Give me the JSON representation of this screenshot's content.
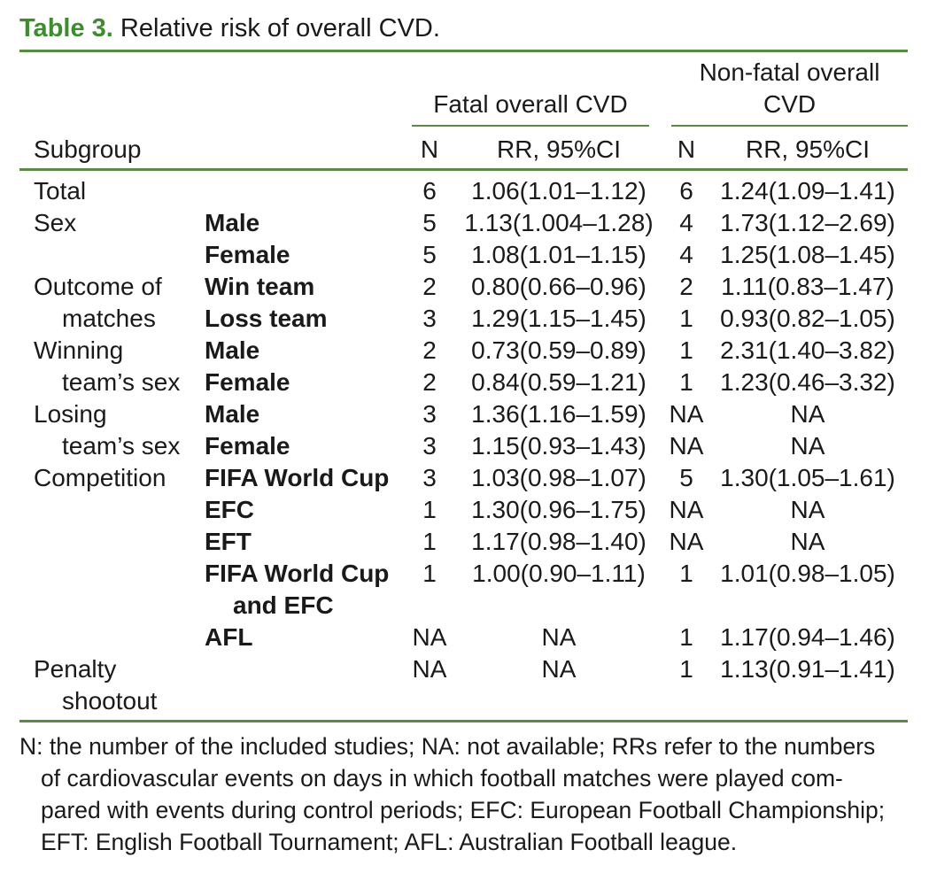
{
  "caption": {
    "label": "Table 3.",
    "text": "Relative risk of overall CVD."
  },
  "headers": {
    "fatal_group": "Fatal overall CVD",
    "nonfatal_group_line1": "Non-fatal overall",
    "nonfatal_group_line2": "CVD",
    "subgroup": "Subgroup",
    "n": "N",
    "rr": "RR, 95%CI"
  },
  "rows": [
    {
      "sub1": "Total",
      "sub2": "",
      "level1": "",
      "level2": "",
      "fatal_n": "6",
      "fatal_rr": "1.06(1.01–1.12)",
      "nonfatal_n": "6",
      "nonfatal_rr": "1.24(1.09–1.41)"
    },
    {
      "sub1": "Sex",
      "sub2": "",
      "level1": "Male",
      "level2": "",
      "fatal_n": "5",
      "fatal_rr": "1.13(1.004–1.28)",
      "nonfatal_n": "4",
      "nonfatal_rr": "1.73(1.12–2.69)"
    },
    {
      "sub1": "",
      "sub2": "",
      "level1": "Female",
      "level2": "",
      "fatal_n": "5",
      "fatal_rr": "1.08(1.01–1.15)",
      "nonfatal_n": "4",
      "nonfatal_rr": "1.25(1.08–1.45)"
    },
    {
      "sub1": "Outcome of",
      "sub2": "",
      "level1": "Win team",
      "level2": "",
      "fatal_n": "2",
      "fatal_rr": "0.80(0.66–0.96)",
      "nonfatal_n": "2",
      "nonfatal_rr": "1.11(0.83–1.47)"
    },
    {
      "sub1": "matches",
      "sub2": "",
      "level1": "Loss team",
      "level2": "",
      "fatal_n": "3",
      "fatal_rr": "1.29(1.15–1.45)",
      "nonfatal_n": "1",
      "nonfatal_rr": "0.93(0.82–1.05)"
    },
    {
      "sub1": "Winning",
      "sub2": "",
      "level1": "Male",
      "level2": "",
      "fatal_n": "2",
      "fatal_rr": "0.73(0.59–0.89)",
      "nonfatal_n": "1",
      "nonfatal_rr": "2.31(1.40–3.82)"
    },
    {
      "sub1": "team’s sex",
      "sub2": "",
      "level1": "Female",
      "level2": "",
      "fatal_n": "2",
      "fatal_rr": "0.84(0.59–1.21)",
      "nonfatal_n": "1",
      "nonfatal_rr": "1.23(0.46–3.32)"
    },
    {
      "sub1": "Losing",
      "sub2": "",
      "level1": "Male",
      "level2": "",
      "fatal_n": "3",
      "fatal_rr": "1.36(1.16–1.59)",
      "nonfatal_n": "NA",
      "nonfatal_rr": "NA"
    },
    {
      "sub1": "team’s sex",
      "sub2": "",
      "level1": "Female",
      "level2": "",
      "fatal_n": "3",
      "fatal_rr": "1.15(0.93–1.43)",
      "nonfatal_n": "NA",
      "nonfatal_rr": "NA"
    },
    {
      "sub1": "Competition",
      "sub2": "",
      "level1": "FIFA World Cup",
      "level2": "",
      "fatal_n": "3",
      "fatal_rr": "1.03(0.98–1.07)",
      "nonfatal_n": "5",
      "nonfatal_rr": "1.30(1.05–1.61)"
    },
    {
      "sub1": "",
      "sub2": "",
      "level1": "EFC",
      "level2": "",
      "fatal_n": "1",
      "fatal_rr": "1.30(0.96–1.75)",
      "nonfatal_n": "NA",
      "nonfatal_rr": "NA"
    },
    {
      "sub1": "",
      "sub2": "",
      "level1": "EFT",
      "level2": "",
      "fatal_n": "1",
      "fatal_rr": "1.17(0.98–1.40)",
      "nonfatal_n": "NA",
      "nonfatal_rr": "NA"
    },
    {
      "sub1": "",
      "sub2": "",
      "level1": "FIFA World Cup",
      "level2": "and EFC",
      "fatal_n": "1",
      "fatal_rr": "1.00(0.90–1.11)",
      "nonfatal_n": "1",
      "nonfatal_rr": "1.01(0.98–1.05)"
    },
    {
      "sub1": "",
      "sub2": "",
      "level1": "AFL",
      "level2": "",
      "fatal_n": "NA",
      "fatal_rr": "NA",
      "nonfatal_n": "1",
      "nonfatal_rr": "1.17(0.94–1.46)"
    },
    {
      "sub1": "Penalty",
      "sub2": "shootout",
      "level1": "",
      "level2": "",
      "fatal_n": "NA",
      "fatal_rr": "NA",
      "nonfatal_n": "1",
      "nonfatal_rr": "1.13(0.91–1.41)"
    }
  ],
  "footnote": [
    "N: the number of the included studies; NA: not available; RRs refer to the numbers",
    "of cardiovascular events on days in which football matches were played com-",
    "pared with events during control periods; EFC: European Football Championship;",
    "EFT: English Football Tournament; AFL: Australian Football league."
  ],
  "colors": {
    "accent": "#3d8c2e",
    "rule": "#5a8a45",
    "text": "#1a1a1a"
  }
}
